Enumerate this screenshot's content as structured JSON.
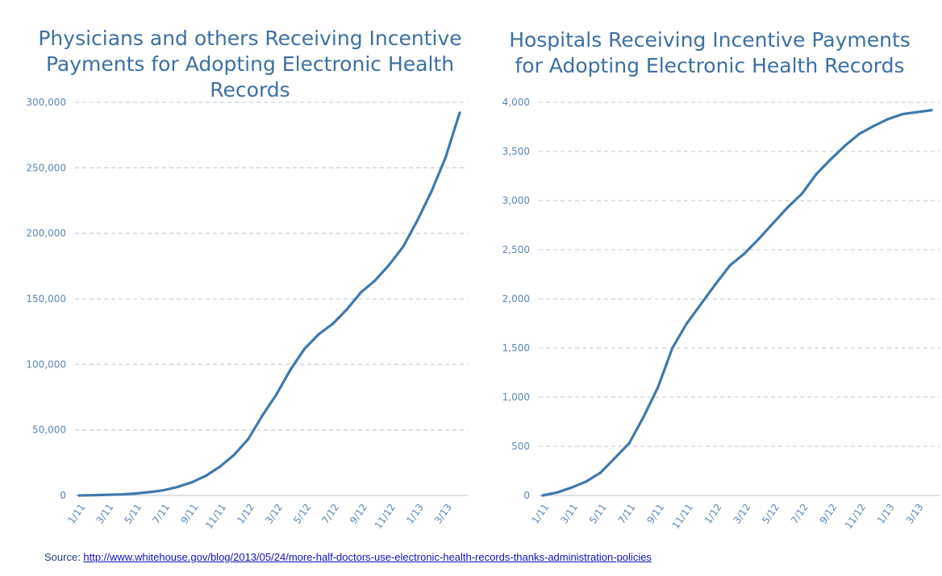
{
  "colors": {
    "title": "#3d6fa3",
    "line": "#3f78ad",
    "grid": "#c9d3de",
    "tick": "#5b87b5",
    "source_label": "#1f3d7a",
    "link": "#1010c0"
  },
  "chart_data": [
    {
      "type": "line",
      "title_lines": [
        "Physicians and others Receiving Incentive",
        "Payments for Adopting Electronic Health Records"
      ],
      "xlabel": "",
      "ylabel": "",
      "ylim": [
        0,
        300000
      ],
      "yticks": [
        0,
        50000,
        100000,
        150000,
        200000,
        250000,
        300000
      ],
      "ytick_labels": [
        "0",
        "50,000",
        "100,000",
        "150,000",
        "200,000",
        "250,000",
        "300,000"
      ],
      "xtick_labels": [
        "1/11",
        "3/11",
        "5/11",
        "7/11",
        "9/11",
        "11/11",
        "1/12",
        "3/12",
        "5/12",
        "7/12",
        "9/12",
        "11/12",
        "1/13",
        "3/13"
      ],
      "grid": true,
      "categories": [
        "1/11",
        "2/11",
        "3/11",
        "4/11",
        "5/11",
        "6/11",
        "7/11",
        "8/11",
        "9/11",
        "10/11",
        "11/11",
        "12/11",
        "1/12",
        "2/12",
        "3/12",
        "4/12",
        "5/12",
        "6/12",
        "7/12",
        "8/12",
        "9/12",
        "10/12",
        "11/12",
        "12/12",
        "1/13",
        "2/13",
        "3/13",
        "4/13"
      ],
      "series": [
        {
          "values": [
            0,
            200,
            500,
            800,
            1500,
            2500,
            4000,
            6500,
            10000,
            15000,
            22000,
            31000,
            43000,
            61000,
            77000,
            96000,
            112000,
            123000,
            131000,
            142000,
            155000,
            164000,
            176000,
            190000,
            210000,
            232000,
            258000,
            292000
          ]
        }
      ]
    },
    {
      "type": "line",
      "title_lines": [
        "Hospitals Receiving Incentive Payments",
        "for Adopting Electronic Health Records"
      ],
      "xlabel": "",
      "ylabel": "",
      "ylim": [
        0,
        4000
      ],
      "yticks": [
        0,
        500,
        1000,
        1500,
        2000,
        2500,
        3000,
        3500,
        4000
      ],
      "ytick_labels": [
        "0",
        "500",
        "1,000",
        "1,500",
        "2,000",
        "2,500",
        "3,000",
        "3,500",
        "4,000"
      ],
      "xtick_labels": [
        "1/11",
        "3/11",
        "5/11",
        "7/11",
        "9/11",
        "11/11",
        "1/12",
        "3/12",
        "5/12",
        "7/12",
        "9/12",
        "11/12",
        "1/13",
        "3/13"
      ],
      "grid": true,
      "categories": [
        "1/11",
        "2/11",
        "3/11",
        "4/11",
        "5/11",
        "6/11",
        "7/11",
        "8/11",
        "9/11",
        "10/11",
        "11/11",
        "12/11",
        "1/12",
        "2/12",
        "3/12",
        "4/12",
        "5/12",
        "6/12",
        "7/12",
        "8/12",
        "9/12",
        "10/12",
        "11/12",
        "12/12",
        "1/13",
        "2/13",
        "3/13",
        "4/13"
      ],
      "series": [
        {
          "values": [
            0,
            30,
            80,
            140,
            230,
            380,
            530,
            800,
            1100,
            1500,
            1750,
            1950,
            2150,
            2340,
            2460,
            2610,
            2770,
            2930,
            3070,
            3270,
            3420,
            3560,
            3680,
            3760,
            3830,
            3880,
            3900,
            3920
          ]
        }
      ]
    }
  ],
  "source": {
    "label": "Source: ",
    "url_text": "http://www.whitehouse.gov/blog/2013/05/24/more-half-doctors-use-electronic-health-records-thanks-administration-policies"
  }
}
